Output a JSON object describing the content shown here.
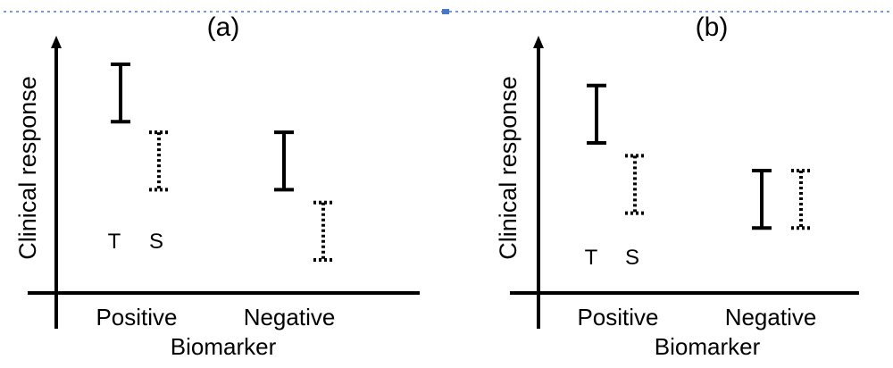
{
  "chart_data": [
    {
      "type": "errorbar",
      "title": "(a)",
      "ylabel": "Clinical response",
      "xlabel": "Biomarker",
      "categories": [
        "Positive",
        "Negative"
      ],
      "ylim": [
        0,
        10
      ],
      "grid": false,
      "marker_labels": [
        "T",
        "S"
      ],
      "series": [
        {
          "name": "T",
          "style": "solid",
          "ranges": [
            [
              7.3,
              10.0
            ],
            [
              4.1,
              6.8
            ]
          ]
        },
        {
          "name": "S",
          "style": "dotted",
          "ranges": [
            [
              4.1,
              6.8
            ],
            [
              0.8,
              3.5
            ]
          ]
        }
      ]
    },
    {
      "type": "errorbar",
      "title": "(b)",
      "ylabel": "Clinical response",
      "xlabel": "Biomarker",
      "categories": [
        "Positive",
        "Negative"
      ],
      "ylim": [
        0,
        10
      ],
      "grid": false,
      "marker_labels": [
        "T",
        "S"
      ],
      "series": [
        {
          "name": "T",
          "style": "solid",
          "ranges": [
            [
              6.3,
              9.0
            ],
            [
              2.3,
              5.0
            ]
          ]
        },
        {
          "name": "S",
          "style": "dotted",
          "ranges": [
            [
              3.0,
              5.7
            ],
            [
              2.3,
              5.0
            ]
          ]
        }
      ]
    }
  ]
}
